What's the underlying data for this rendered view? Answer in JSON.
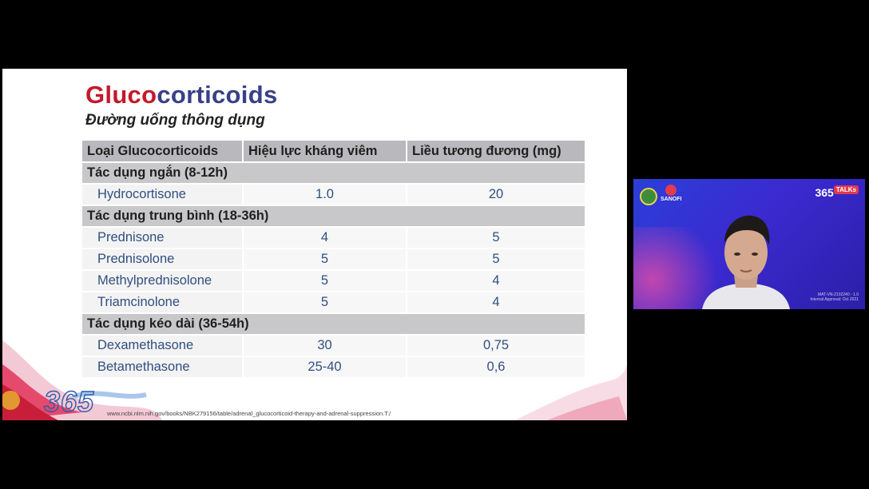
{
  "slide": {
    "title_part1": "Gluco",
    "title_part2": "corticoids",
    "subtitle": "Đường uống thông dụng",
    "table": {
      "headers": [
        "Loại Glucocorticoids",
        "Hiệu lực kháng viêm",
        "Liều tương đương (mg)"
      ],
      "groups": [
        {
          "label": "Tác dụng ngắn (8-12h)",
          "rows": [
            [
              "Hydrocortisone",
              "1.0",
              "20"
            ]
          ]
        },
        {
          "label": "Tác dụng trung bình (18-36h)",
          "rows": [
            [
              "Prednisone",
              "4",
              "5"
            ],
            [
              "Prednisolone",
              "5",
              "5"
            ],
            [
              "Methylprednisolone",
              "5",
              "4"
            ],
            [
              "Triamcinolone",
              "5",
              "4"
            ]
          ]
        },
        {
          "label": "Tác dụng kéo dài (36-54h)",
          "rows": [
            [
              "Dexamethasone",
              "30",
              "0,75"
            ],
            [
              "Betamethasone",
              "25-40",
              "0,6"
            ]
          ]
        }
      ]
    },
    "logo_text": "365",
    "source_url": "www.ncbi.nlm.nih.gov/books/NBK279156/table/adrenal_glucocorticoid-therapy-and-adrenal-suppression.T./"
  },
  "webcam": {
    "sponsor": "SANOFI",
    "talks_number": "365",
    "talks_badge": "TALKs",
    "code_line1": "MAT-VN-2102240 - 1.0",
    "code_line2": "Internal Approval: Oct 2021"
  },
  "colors": {
    "title_red": "#c5182b",
    "title_navy": "#3a3f88",
    "header_gray": "#b9b9bd",
    "drug_blue": "#2f4f7f"
  }
}
